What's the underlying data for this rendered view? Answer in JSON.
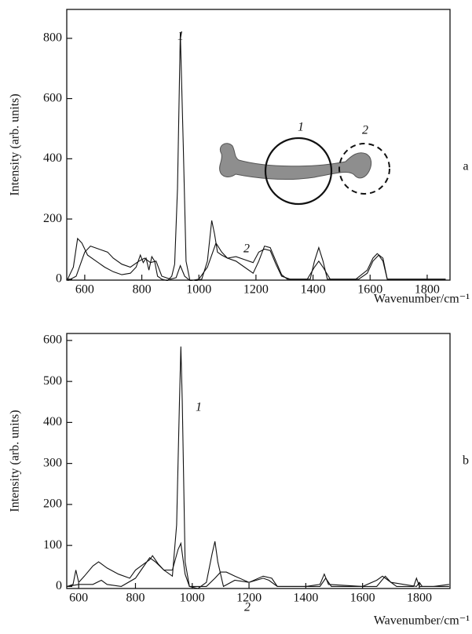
{
  "chart_data": [
    {
      "type": "line",
      "panel_label": "a",
      "y_label": "Intensity (arb. units)",
      "x_label": "Wavenumber/cm⁻¹",
      "xlim": [
        537,
        1880
      ],
      "ylim": [
        -3,
        896
      ],
      "xticks": [
        600,
        800,
        1000,
        1200,
        1400,
        1600,
        1800
      ],
      "yticks": [
        0,
        200,
        400,
        600,
        800
      ],
      "inset_labels": [
        "1",
        "2"
      ],
      "series": [
        {
          "name": "1",
          "color": "#111111",
          "x": [
            540,
            560,
            575,
            590,
            610,
            640,
            670,
            700,
            730,
            760,
            780,
            795,
            805,
            815,
            825,
            835,
            845,
            855,
            870,
            890,
            905,
            915,
            925,
            935,
            945,
            955,
            970,
            990,
            1010,
            1030,
            1045,
            1055,
            1065,
            1080,
            1100,
            1130,
            1160,
            1190,
            1210,
            1230,
            1250,
            1270,
            1290,
            1310,
            1350,
            1390,
            1405,
            1420,
            1435,
            1450,
            1500,
            1560,
            1590,
            1610,
            1630,
            1645,
            1660,
            1700,
            1800,
            1865
          ],
          "values": [
            0,
            40,
            135,
            120,
            80,
            60,
            40,
            25,
            15,
            20,
            40,
            80,
            55,
            70,
            30,
            75,
            60,
            10,
            0,
            -5,
            10,
            50,
            300,
            820,
            450,
            60,
            -10,
            -5,
            0,
            60,
            195,
            150,
            90,
            80,
            70,
            60,
            40,
            20,
            60,
            110,
            105,
            60,
            15,
            0,
            0,
            0,
            60,
            105,
            60,
            0,
            0,
            0,
            20,
            60,
            80,
            60,
            0,
            0,
            0,
            0
          ]
        },
        {
          "name": "2",
          "color": "#111111",
          "x": [
            540,
            570,
            600,
            620,
            650,
            680,
            700,
            730,
            760,
            790,
            810,
            830,
            850,
            870,
            900,
            920,
            935,
            950,
            970,
            1000,
            1030,
            1045,
            1060,
            1080,
            1100,
            1130,
            1160,
            1190,
            1210,
            1230,
            1250,
            1270,
            1290,
            1320,
            1380,
            1405,
            1420,
            1435,
            1460,
            1550,
            1590,
            1610,
            1625,
            1645,
            1660,
            1700,
            1865
          ],
          "values": [
            -5,
            10,
            90,
            110,
            100,
            90,
            70,
            50,
            40,
            60,
            70,
            55,
            60,
            10,
            0,
            5,
            45,
            10,
            -5,
            0,
            40,
            80,
            120,
            90,
            70,
            75,
            65,
            55,
            90,
            100,
            95,
            50,
            10,
            0,
            0,
            40,
            60,
            40,
            0,
            0,
            30,
            70,
            85,
            70,
            0,
            0,
            0
          ]
        }
      ]
    },
    {
      "type": "line",
      "panel_label": "b",
      "y_label": "Intensity (arb. units)",
      "x_label": "Wavenumber/cm⁻¹",
      "xlim": [
        558,
        1908
      ],
      "ylim": [
        -5,
        617
      ],
      "xticks": [
        600,
        800,
        1000,
        1200,
        1400,
        1600,
        1800
      ],
      "yticks": [
        0,
        100,
        200,
        300,
        400,
        500,
        600
      ],
      "series": [
        {
          "name": "1",
          "color": "#111111",
          "x": [
            560,
            580,
            590,
            600,
            620,
            650,
            670,
            700,
            740,
            780,
            800,
            830,
            850,
            860,
            880,
            900,
            930,
            945,
            955,
            960,
            965,
            975,
            990,
            1020,
            1050,
            1070,
            1080,
            1090,
            1110,
            1150,
            1200,
            1250,
            1270,
            1300,
            1400,
            1450,
            1465,
            1480,
            1600,
            1650,
            1670,
            1690,
            1720,
            1780,
            1790,
            1800,
            1850,
            1905
          ],
          "values": [
            0,
            5,
            40,
            10,
            25,
            50,
            60,
            45,
            30,
            20,
            40,
            55,
            65,
            75,
            55,
            40,
            25,
            150,
            450,
            585,
            450,
            60,
            0,
            -5,
            10,
            80,
            110,
            60,
            0,
            15,
            10,
            20,
            15,
            0,
            0,
            5,
            30,
            5,
            0,
            15,
            25,
            15,
            0,
            0,
            20,
            0,
            0,
            5
          ]
        },
        {
          "name": "2",
          "color": "#111111",
          "x": [
            560,
            600,
            650,
            680,
            700,
            750,
            800,
            820,
            850,
            870,
            900,
            930,
            950,
            960,
            975,
            990,
            1050,
            1080,
            1100,
            1120,
            1150,
            1200,
            1250,
            1280,
            1300,
            1450,
            1470,
            1490,
            1650,
            1680,
            1700,
            1790,
            1800,
            1810,
            1905
          ],
          "values": [
            0,
            5,
            5,
            15,
            5,
            0,
            20,
            40,
            70,
            60,
            40,
            40,
            90,
            105,
            30,
            0,
            0,
            20,
            35,
            35,
            25,
            10,
            25,
            20,
            0,
            0,
            20,
            0,
            0,
            25,
            10,
            0,
            10,
            0,
            0
          ]
        }
      ]
    }
  ]
}
